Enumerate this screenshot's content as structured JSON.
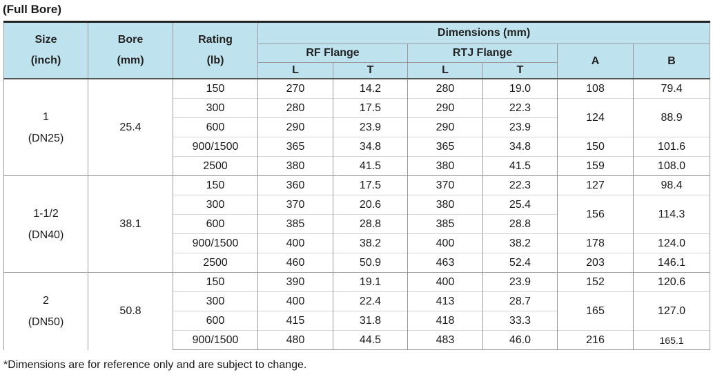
{
  "title": "(Full Bore)",
  "headers": {
    "size_line1": "Size",
    "size_line2": "(inch)",
    "bore_line1": "Bore",
    "bore_line2": "(mm)",
    "rating_line1": "Rating",
    "rating_line2": "(lb)",
    "dimensions": "Dimensions (mm)",
    "rf_flange": "RF Flange",
    "rtj_flange": "RTJ Flange",
    "a": "A",
    "b": "B",
    "rf_l": "L",
    "rf_t": "T",
    "rtj_l": "L",
    "rtj_t": "T"
  },
  "groups": [
    {
      "size": "1",
      "size_dn": "(DN25)",
      "bore": "25.4",
      "rows": [
        {
          "rating": "150",
          "rf_l": "270",
          "rf_t": "14.2",
          "rtj_l": "280",
          "rtj_t": "19.0"
        },
        {
          "rating": "300",
          "rf_l": "280",
          "rf_t": "17.5",
          "rtj_l": "290",
          "rtj_t": "22.3"
        },
        {
          "rating": "600",
          "rf_l": "290",
          "rf_t": "23.9",
          "rtj_l": "290",
          "rtj_t": "23.9"
        },
        {
          "rating": "900/1500",
          "rf_l": "365",
          "rf_t": "34.8",
          "rtj_l": "365",
          "rtj_t": "34.8"
        },
        {
          "rating": "2500",
          "rf_l": "380",
          "rf_t": "41.5",
          "rtj_l": "380",
          "rtj_t": "41.5"
        }
      ],
      "ab": [
        {
          "a": "108",
          "b": "79.4"
        },
        {
          "a": "124",
          "b": "88.9"
        },
        {
          "a": "150",
          "b": "101.6"
        },
        {
          "a": "159",
          "b": "108.0"
        }
      ]
    },
    {
      "size": "1-1/2",
      "size_dn": "(DN40)",
      "bore": "38.1",
      "rows": [
        {
          "rating": "150",
          "rf_l": "360",
          "rf_t": "17.5",
          "rtj_l": "370",
          "rtj_t": "22.3"
        },
        {
          "rating": "300",
          "rf_l": "370",
          "rf_t": "20.6",
          "rtj_l": "380",
          "rtj_t": "25.4"
        },
        {
          "rating": "600",
          "rf_l": "385",
          "rf_t": "28.8",
          "rtj_l": "385",
          "rtj_t": "28.8"
        },
        {
          "rating": "900/1500",
          "rf_l": "400",
          "rf_t": "38.2",
          "rtj_l": "400",
          "rtj_t": "38.2"
        },
        {
          "rating": "2500",
          "rf_l": "460",
          "rf_t": "50.9",
          "rtj_l": "463",
          "rtj_t": "52.4"
        }
      ],
      "ab": [
        {
          "a": "127",
          "b": "98.4"
        },
        {
          "a": "156",
          "b": "114.3"
        },
        {
          "a": "178",
          "b": "124.0"
        },
        {
          "a": "203",
          "b": "146.1"
        }
      ]
    },
    {
      "size": "2",
      "size_dn": "(DN50)",
      "bore": "50.8",
      "rows": [
        {
          "rating": "150",
          "rf_l": "390",
          "rf_t": "19.1",
          "rtj_l": "400",
          "rtj_t": "23.9"
        },
        {
          "rating": "300",
          "rf_l": "400",
          "rf_t": "22.4",
          "rtj_l": "413",
          "rtj_t": "28.7"
        },
        {
          "rating": "600",
          "rf_l": "415",
          "rf_t": "31.8",
          "rtj_l": "418",
          "rtj_t": "33.3"
        },
        {
          "rating": "900/1500",
          "rf_l": "480",
          "rf_t": "44.5",
          "rtj_l": "483",
          "rtj_t": "46.0"
        }
      ],
      "ab": [
        {
          "a": "152",
          "b": "120.6"
        },
        {
          "a": "165",
          "b": "127.0"
        },
        {
          "a": "216",
          "b": "165.1"
        }
      ]
    }
  ],
  "footnote": "*Dimensions are for reference only and are subject to change."
}
